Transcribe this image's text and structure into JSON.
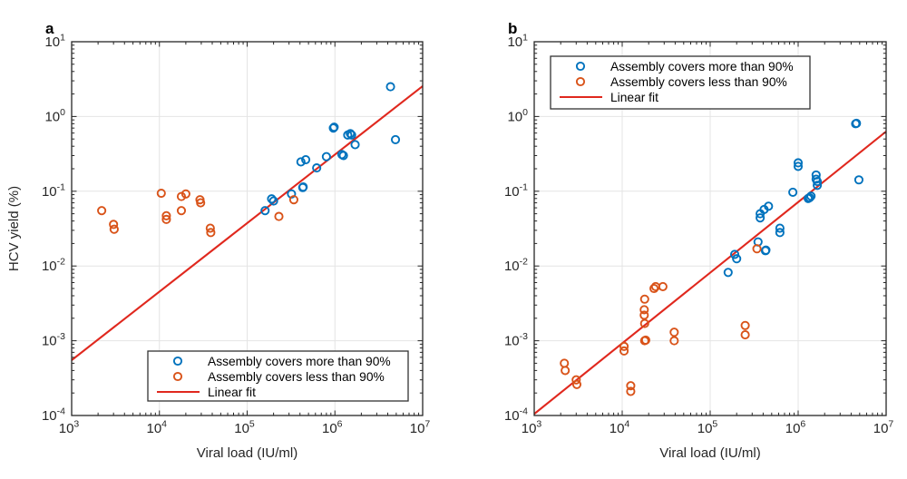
{
  "figure": {
    "background": "#ffffff",
    "colors": {
      "axis": "#262626",
      "grid": "#e4e4e4",
      "blue_marker": "#0072bd",
      "orange_marker": "#d95319",
      "fit_line": "#e0281e",
      "legend_border": "#333333",
      "legend_background": "#ffffff"
    }
  },
  "chart_data": [
    {
      "type": "scatter",
      "panel_label": "a",
      "xlabel": "Viral load (IU/ml)",
      "ylabel": "HCV yield (%)",
      "x_scale": "log",
      "y_scale": "log",
      "xlim": [
        1000,
        10000000
      ],
      "ylim": [
        0.0001,
        10
      ],
      "x_tick_exponents": [
        3,
        4,
        5,
        6,
        7
      ],
      "y_tick_exponents": [
        1,
        0,
        -1,
        -2,
        -3,
        -4
      ],
      "grid": true,
      "legend_position": "bottom-center",
      "series": [
        {
          "name": "Assembly covers more than 90%",
          "type": "scatter",
          "color": "#0072bd",
          "points": [
            [
              160000,
              0.055
            ],
            [
              190000,
              0.079
            ],
            [
              200000,
              0.074
            ],
            [
              320000,
              0.092
            ],
            [
              430000,
              0.112
            ],
            [
              435000,
              0.114
            ],
            [
              410000,
              0.247
            ],
            [
              465000,
              0.264
            ],
            [
              620000,
              0.205
            ],
            [
              800000,
              0.29
            ],
            [
              1200000,
              0.31
            ],
            [
              1250000,
              0.3
            ],
            [
              960000,
              0.7
            ],
            [
              980000,
              0.72
            ],
            [
              1400000,
              0.565
            ],
            [
              1500000,
              0.59
            ],
            [
              1550000,
              0.565
            ],
            [
              1700000,
              0.42
            ],
            [
              4300000,
              2.5
            ],
            [
              4900000,
              0.49
            ]
          ]
        },
        {
          "name": "Assembly covers less than 90%",
          "type": "scatter",
          "color": "#d95319",
          "points": [
            [
              2200,
              0.055
            ],
            [
              3000,
              0.036
            ],
            [
              3050,
              0.031
            ],
            [
              10500,
              0.094
            ],
            [
              12000,
              0.047
            ],
            [
              12000,
              0.042
            ],
            [
              17800,
              0.085
            ],
            [
              20000,
              0.092
            ],
            [
              17800,
              0.055
            ],
            [
              29000,
              0.077
            ],
            [
              29500,
              0.07
            ],
            [
              38000,
              0.032
            ],
            [
              38500,
              0.028
            ],
            [
              230000,
              0.046
            ],
            [
              340000,
              0.077
            ]
          ]
        },
        {
          "name": "Linear fit",
          "type": "line",
          "color": "#e0281e",
          "points": [
            [
              1000,
              0.00055
            ],
            [
              10000000,
              2.55
            ]
          ]
        }
      ]
    },
    {
      "type": "scatter",
      "panel_label": "b",
      "xlabel": "Viral load (IU/ml)",
      "ylabel": "",
      "x_scale": "log",
      "y_scale": "log",
      "xlim": [
        1000,
        10000000
      ],
      "ylim": [
        0.0001,
        10
      ],
      "x_tick_exponents": [
        3,
        4,
        5,
        6,
        7
      ],
      "y_tick_exponents": [
        1,
        0,
        -1,
        -2,
        -3,
        -4
      ],
      "grid": true,
      "legend_position": "top-left",
      "series": [
        {
          "name": "Assembly covers more than 90%",
          "type": "scatter",
          "color": "#0072bd",
          "points": [
            [
              160000,
              0.0082
            ],
            [
              190000,
              0.0143
            ],
            [
              200000,
              0.0125
            ],
            [
              350000,
              0.021
            ],
            [
              425000,
              0.016
            ],
            [
              430000,
              0.0163
            ],
            [
              620000,
              0.032
            ],
            [
              620000,
              0.028
            ],
            [
              370000,
              0.05
            ],
            [
              370000,
              0.044
            ],
            [
              410000,
              0.057
            ],
            [
              460000,
              0.063
            ],
            [
              870000,
              0.097
            ],
            [
              1300000,
              0.08
            ],
            [
              1350000,
              0.082
            ],
            [
              1400000,
              0.086
            ],
            [
              1000000,
              0.24
            ],
            [
              1000000,
              0.215
            ],
            [
              1600000,
              0.165
            ],
            [
              1600000,
              0.145
            ],
            [
              1650000,
              0.135
            ],
            [
              1650000,
              0.12
            ],
            [
              4500000,
              0.8
            ],
            [
              4600000,
              0.81
            ],
            [
              4900000,
              0.142
            ]
          ]
        },
        {
          "name": "Assembly covers less than 90%",
          "type": "scatter",
          "color": "#d95319",
          "points": [
            [
              2200,
              0.0005
            ],
            [
              2250,
              0.0004
            ],
            [
              3000,
              0.0003
            ],
            [
              3050,
              0.00026
            ],
            [
              10500,
              0.00084
            ],
            [
              10500,
              0.00073
            ],
            [
              12500,
              0.00025
            ],
            [
              12500,
              0.00021
            ],
            [
              17800,
              0.0026
            ],
            [
              17800,
              0.0022
            ],
            [
              18000,
              0.0036
            ],
            [
              18000,
              0.0017
            ],
            [
              18000,
              0.001
            ],
            [
              18500,
              0.00102
            ],
            [
              23000,
              0.005
            ],
            [
              24000,
              0.0053
            ],
            [
              29000,
              0.0053
            ],
            [
              39000,
              0.0013
            ],
            [
              39000,
              0.001
            ],
            [
              250000,
              0.0016
            ],
            [
              250000,
              0.0012
            ],
            [
              340000,
              0.017
            ]
          ]
        },
        {
          "name": "Linear fit",
          "type": "line",
          "color": "#e0281e",
          "points": [
            [
              1000,
              0.000105
            ],
            [
              10000000,
              0.63
            ]
          ]
        }
      ]
    }
  ]
}
